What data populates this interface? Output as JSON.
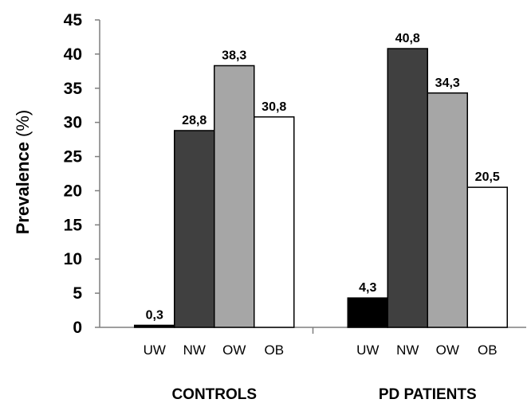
{
  "chart_data": {
    "type": "bar",
    "ylabel": "Prevalence",
    "ylabel_unit": "(%)",
    "xlabel": "",
    "ylim": [
      0,
      45
    ],
    "yticks": [
      0,
      5,
      10,
      15,
      20,
      25,
      30,
      35,
      40,
      45
    ],
    "grid": false,
    "categories": [
      "UW",
      "NW",
      "OW",
      "OB"
    ],
    "groups": [
      {
        "name": "CONTROLS",
        "values": [
          0.3,
          28.8,
          38.3,
          30.8
        ],
        "value_labels": [
          "0,3",
          "28,8",
          "38,3",
          "30,8"
        ]
      },
      {
        "name": "PD PATIENTS",
        "values": [
          4.3,
          40.8,
          34.3,
          20.5
        ],
        "value_labels": [
          "4,3",
          "40,8",
          "34,3",
          "20,5"
        ]
      }
    ],
    "category_colors": [
      "#000000",
      "#404040",
      "#a6a6a6",
      "#ffffff"
    ],
    "bar_stroke": "#000000"
  }
}
